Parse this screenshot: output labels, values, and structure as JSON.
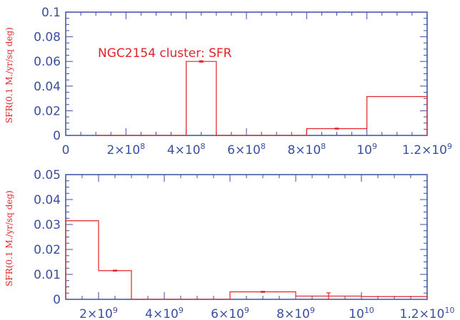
{
  "colors": {
    "axis": "#3a4fa0",
    "data": "#e0242a",
    "background": "#ffffff"
  },
  "chart_data": [
    {
      "type": "bar",
      "annotation": "NGC2154 cluster: SFR",
      "ylabel": "SFR(0.1 M./yr/sq deg)",
      "xlabel": "",
      "xlim": [
        0,
        1200000000
      ],
      "ylim": [
        0,
        0.1
      ],
      "grid": false,
      "x_ticks": [
        {
          "v": 0,
          "label": "0"
        },
        {
          "v": 200000000,
          "mant": "2×10",
          "exp": "8"
        },
        {
          "v": 400000000,
          "mant": "4×10",
          "exp": "8"
        },
        {
          "v": 600000000,
          "mant": "6×10",
          "exp": "8"
        },
        {
          "v": 800000000,
          "mant": "8×10",
          "exp": "8"
        },
        {
          "v": 1000000000,
          "mant": "10",
          "exp": "9"
        },
        {
          "v": 1200000000,
          "mant": "1.2×10",
          "exp": "9"
        }
      ],
      "y_ticks": [
        {
          "v": 0,
          "label": "0"
        },
        {
          "v": 0.02,
          "label": "0.02"
        },
        {
          "v": 0.04,
          "label": "0.04"
        },
        {
          "v": 0.06,
          "label": "0.06"
        },
        {
          "v": 0.08,
          "label": "0.08"
        },
        {
          "v": 0.1,
          "label": "0.1"
        }
      ],
      "bins": [
        {
          "x0": 100000000,
          "x1": 400000000,
          "y": 0,
          "err": 0
        },
        {
          "x0": 400000000,
          "x1": 500000000,
          "y": 0.06,
          "err": 0.0006
        },
        {
          "x0": 500000000,
          "x1": 800000000,
          "y": 0,
          "err": 0
        },
        {
          "x0": 800000000,
          "x1": 1000000000,
          "y": 0.0055,
          "err": 0.0004
        },
        {
          "x0": 1000000000,
          "x1": 1200000000,
          "y": 0.0315,
          "err": 0
        }
      ]
    },
    {
      "type": "bar",
      "ylabel": "SFR(0.1 M./yr/sq deg)",
      "xlabel": "",
      "xlim": [
        1000000000,
        12000000000
      ],
      "ylim": [
        0,
        0.05
      ],
      "grid": false,
      "x_ticks": [
        {
          "v": 2000000000,
          "mant": "2×10",
          "exp": "9"
        },
        {
          "v": 4000000000,
          "mant": "4×10",
          "exp": "9"
        },
        {
          "v": 6000000000,
          "mant": "6×10",
          "exp": "9"
        },
        {
          "v": 8000000000,
          "mant": "8×10",
          "exp": "9"
        },
        {
          "v": 10000000000,
          "mant": "10",
          "exp": "10"
        },
        {
          "v": 12000000000,
          "mant": "1.2×10",
          "exp": "10"
        }
      ],
      "y_ticks": [
        {
          "v": 0,
          "label": "0"
        },
        {
          "v": 0.01,
          "label": "0.01"
        },
        {
          "v": 0.02,
          "label": "0.02"
        },
        {
          "v": 0.03,
          "label": "0.03"
        },
        {
          "v": 0.04,
          "label": "0.04"
        },
        {
          "v": 0.05,
          "label": "0.05"
        }
      ],
      "bins": [
        {
          "x0": 1000000000,
          "x1": 2000000000,
          "y": 0.0315,
          "err": 0
        },
        {
          "x0": 2000000000,
          "x1": 3000000000,
          "y": 0.0115,
          "err": 0.0002
        },
        {
          "x0": 3000000000,
          "x1": 6000000000,
          "y": 0,
          "err": 0
        },
        {
          "x0": 6000000000,
          "x1": 8000000000,
          "y": 0.003,
          "err": 0.0002
        },
        {
          "x0": 8000000000,
          "x1": 10000000000,
          "y": 0.0013,
          "err": 0.0013
        },
        {
          "x0": 10000000000,
          "x1": 12000000000,
          "y": 0.0011,
          "err": 0
        }
      ]
    }
  ]
}
